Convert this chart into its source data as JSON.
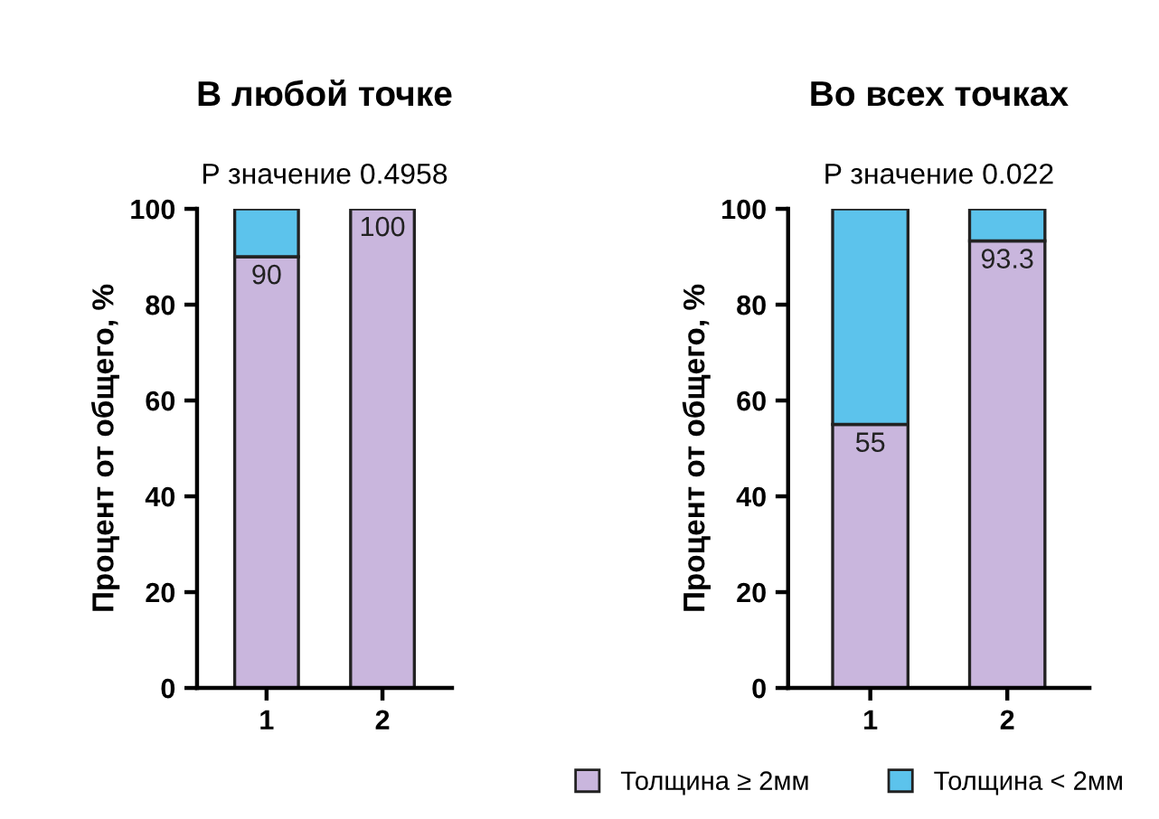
{
  "chart_data": [
    {
      "type": "bar",
      "title": "В любой точке",
      "subtitle": "P значение 0.4958",
      "ylabel": "Процент от общего, %",
      "categories": [
        "1",
        "2"
      ],
      "stacked": true,
      "ylim": [
        0,
        100
      ],
      "yticks": [
        0,
        20,
        40,
        60,
        80,
        100
      ],
      "grid": false,
      "legend": "bottom",
      "series": [
        {
          "name": "Толщина ≥ 2мм",
          "color": "#c9b6dd",
          "values": [
            90,
            100
          ],
          "value_labels": [
            "90",
            "100"
          ]
        },
        {
          "name": "Толщина < 2мм",
          "color": "#5cc3ec",
          "values": [
            10,
            0
          ]
        }
      ]
    },
    {
      "type": "bar",
      "title": "Во всех точках",
      "subtitle": "P значение 0.022",
      "ylabel": "Процент от общего, %",
      "categories": [
        "1",
        "2"
      ],
      "stacked": true,
      "ylim": [
        0,
        100
      ],
      "yticks": [
        0,
        20,
        40,
        60,
        80,
        100
      ],
      "grid": false,
      "legend": "bottom",
      "series": [
        {
          "name": "Толщина ≥ 2мм",
          "color": "#c9b6dd",
          "values": [
            55,
            93.3
          ],
          "value_labels": [
            "55",
            "93.3"
          ]
        },
        {
          "name": "Толщина < 2мм",
          "color": "#5cc3ec",
          "values": [
            45,
            6.7
          ]
        }
      ]
    }
  ]
}
